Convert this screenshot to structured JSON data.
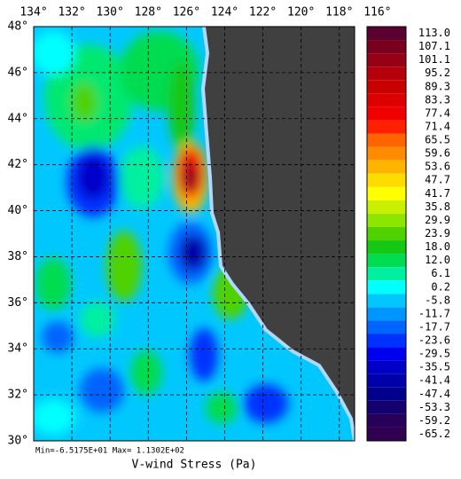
{
  "map": {
    "title": "V-wind Stress (Pa)",
    "stats": "Min=-6.5175E+01  Max= 1.1302E+02",
    "lonlim": [
      134,
      117.2
    ],
    "latlim": [
      30,
      48
    ],
    "lon_ticks": [
      {
        "value": 134,
        "label": "134°"
      },
      {
        "value": 132,
        "label": "132°"
      },
      {
        "value": 130,
        "label": "130°"
      },
      {
        "value": 128,
        "label": "128°"
      },
      {
        "value": 126,
        "label": "126°"
      },
      {
        "value": 124,
        "label": "124°"
      },
      {
        "value": 122,
        "label": "122°"
      },
      {
        "value": 120,
        "label": "120°"
      },
      {
        "value": 118,
        "label": "118°"
      },
      {
        "value": 116,
        "label": "116°"
      }
    ],
    "lat_ticks": [
      {
        "value": 48,
        "label": "48°"
      },
      {
        "value": 46,
        "label": "46°"
      },
      {
        "value": 44,
        "label": "44°"
      },
      {
        "value": 42,
        "label": "42°"
      },
      {
        "value": 40,
        "label": "40°"
      },
      {
        "value": 38,
        "label": "38°"
      },
      {
        "value": 36,
        "label": "36°"
      },
      {
        "value": 34,
        "label": "34°"
      },
      {
        "value": 32,
        "label": "32°"
      },
      {
        "value": 30,
        "label": "30°"
      }
    ],
    "colorbar": [
      {
        "value": 113,
        "label": "113.0",
        "color": "#5a0030"
      },
      {
        "value": 107.1,
        "label": "107.1",
        "color": "#78001e"
      },
      {
        "value": 101.1,
        "label": "101.1",
        "color": "#960014"
      },
      {
        "value": 95.2,
        "label": "95.2",
        "color": "#b4000a"
      },
      {
        "value": 89.3,
        "label": "89.3",
        "color": "#c80000"
      },
      {
        "value": 83.3,
        "label": "83.3",
        "color": "#dc0000"
      },
      {
        "value": 77.4,
        "label": "77.4",
        "color": "#f00000"
      },
      {
        "value": 71.4,
        "label": "71.4",
        "color": "#ff2000"
      },
      {
        "value": 65.5,
        "label": "65.5",
        "color": "#ff6400"
      },
      {
        "value": 59.6,
        "label": "59.6",
        "color": "#ff8c00"
      },
      {
        "value": 53.6,
        "label": "53.6",
        "color": "#ffb400"
      },
      {
        "value": 47.7,
        "label": "47.7",
        "color": "#ffdc00"
      },
      {
        "value": 41.7,
        "label": "41.7",
        "color": "#ffff00"
      },
      {
        "value": 35.8,
        "label": "35.8",
        "color": "#c8f000"
      },
      {
        "value": 29.9,
        "label": "29.9",
        "color": "#8ce600"
      },
      {
        "value": 23.9,
        "label": "23.9",
        "color": "#50d200"
      },
      {
        "value": 18,
        "label": "18.0",
        "color": "#14c814"
      },
      {
        "value": 12,
        "label": "12.0",
        "color": "#00dc50"
      },
      {
        "value": 6.1,
        "label": "6.1",
        "color": "#00f0a0"
      },
      {
        "value": 0.2,
        "label": "0.2",
        "color": "#00ffff"
      },
      {
        "value": -5.8,
        "label": "-5.8",
        "color": "#00c8ff"
      },
      {
        "value": -11.7,
        "label": "-11.7",
        "color": "#0096ff"
      },
      {
        "value": -17.7,
        "label": "-17.7",
        "color": "#0064ff"
      },
      {
        "value": -23.6,
        "label": "-23.6",
        "color": "#0032ff"
      },
      {
        "value": -29.5,
        "label": "-29.5",
        "color": "#0000f0"
      },
      {
        "value": -35.5,
        "label": "-35.5",
        "color": "#0000c8"
      },
      {
        "value": -41.4,
        "label": "-41.4",
        "color": "#0000aa"
      },
      {
        "value": -47.4,
        "label": "-47.4",
        "color": "#00008c"
      },
      {
        "value": -53.3,
        "label": "-53.3",
        "color": "#14006e"
      },
      {
        "value": -59.2,
        "label": "-59.2",
        "color": "#28005a"
      },
      {
        "value": -65.2,
        "label": "-65.2",
        "color": "#320050"
      }
    ]
  }
}
